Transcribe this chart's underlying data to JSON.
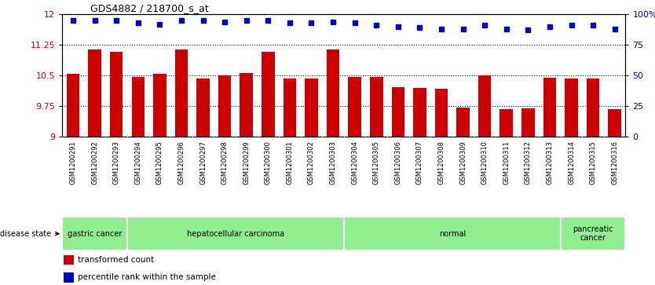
{
  "title": "GDS4882 / 218700_s_at",
  "samples": [
    "GSM1200291",
    "GSM1200292",
    "GSM1200293",
    "GSM1200294",
    "GSM1200295",
    "GSM1200296",
    "GSM1200297",
    "GSM1200298",
    "GSM1200299",
    "GSM1200300",
    "GSM1200301",
    "GSM1200302",
    "GSM1200303",
    "GSM1200304",
    "GSM1200305",
    "GSM1200306",
    "GSM1200307",
    "GSM1200308",
    "GSM1200309",
    "GSM1200310",
    "GSM1200311",
    "GSM1200312",
    "GSM1200313",
    "GSM1200314",
    "GSM1200315",
    "GSM1200316"
  ],
  "bar_values": [
    10.55,
    11.14,
    11.08,
    10.46,
    10.55,
    11.14,
    10.43,
    10.5,
    10.57,
    11.08,
    10.43,
    10.43,
    11.14,
    10.47,
    10.47,
    10.22,
    10.2,
    10.18,
    9.72,
    10.5,
    9.68,
    9.7,
    10.44,
    10.43,
    10.42,
    9.68
  ],
  "dot_values": [
    95,
    95,
    95,
    93,
    92,
    95,
    95,
    94,
    95,
    95,
    93,
    93,
    94,
    93,
    91,
    90,
    89,
    88,
    88,
    91,
    88,
    87,
    90,
    91,
    91,
    88
  ],
  "ylim_left": [
    9.0,
    12.0
  ],
  "ylim_right": [
    0,
    100
  ],
  "yticks_left": [
    9.0,
    9.75,
    10.5,
    11.25,
    12.0
  ],
  "yticks_right": [
    0,
    25,
    50,
    75,
    100
  ],
  "ytick_labels_left": [
    "9",
    "9.75",
    "10.5",
    "11.25",
    "12"
  ],
  "ytick_labels_right": [
    "0",
    "25",
    "50",
    "75",
    "100%"
  ],
  "bar_color": "#cc0000",
  "dot_color": "#0000cc",
  "background_color": "#ffffff",
  "tick_area_color": "#c8c8c8",
  "disease_groups": [
    {
      "label": "gastric cancer",
      "start": 0,
      "end": 3
    },
    {
      "label": "hepatocellular carcinoma",
      "start": 3,
      "end": 13
    },
    {
      "label": "normal",
      "start": 13,
      "end": 23
    },
    {
      "label": "pancreatic\ncancer",
      "start": 23,
      "end": 26
    }
  ],
  "disease_bar_color": "#90ee90",
  "disease_text": "disease state",
  "legend_items": [
    {
      "color": "#cc0000",
      "label": "transformed count"
    },
    {
      "color": "#0000cc",
      "label": "percentile rank within the sample"
    }
  ]
}
